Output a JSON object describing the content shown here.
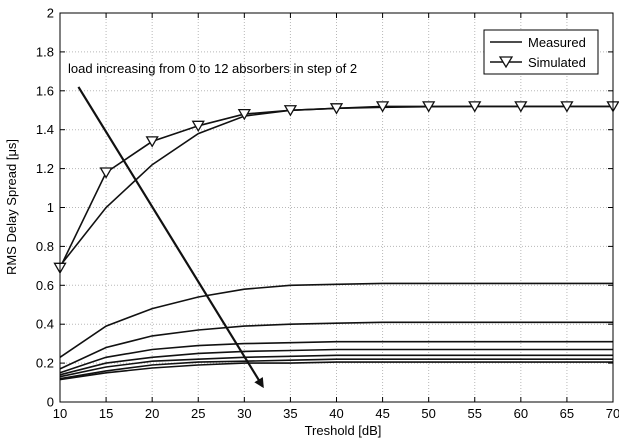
{
  "chart_data": {
    "type": "line",
    "title": "",
    "xlabel": "Treshold [dB]",
    "ylabel": "RMS Delay Spread [μs]",
    "xlim": [
      10,
      70
    ],
    "ylim": [
      0,
      2
    ],
    "xticks": [
      "10",
      "15",
      "20",
      "25",
      "30",
      "35",
      "40",
      "45",
      "50",
      "55",
      "60",
      "65",
      "70"
    ],
    "yticks": [
      "0",
      "0.2",
      "0.4",
      "0.6",
      "0.8",
      "1",
      "1.2",
      "1.4",
      "1.6",
      "1.8",
      "2"
    ],
    "grid": true,
    "legend_position": "top-right",
    "legend": [
      {
        "label": "Measured",
        "style": "line"
      },
      {
        "label": "Simulated",
        "style": "line-triangle"
      }
    ],
    "annotation": "load increasing from 0 to 12 absorbers in step of 2",
    "arrow": {
      "from": [
        12,
        1.62
      ],
      "to": [
        32,
        0.08
      ]
    },
    "x": [
      10,
      15,
      20,
      25,
      30,
      35,
      40,
      45,
      50,
      55,
      60,
      65,
      70
    ],
    "series": [
      {
        "kind": "measured",
        "values": [
          0.7,
          1.0,
          1.22,
          1.38,
          1.47,
          1.5,
          1.51,
          1.515,
          1.518,
          1.52,
          1.52,
          1.52,
          1.52
        ]
      },
      {
        "kind": "simulated",
        "values": [
          0.69,
          1.18,
          1.34,
          1.42,
          1.48,
          1.5,
          1.51,
          1.52,
          1.52,
          1.52,
          1.52,
          1.52,
          1.52
        ]
      },
      {
        "kind": "measured",
        "values": [
          0.23,
          0.39,
          0.48,
          0.54,
          0.58,
          0.6,
          0.605,
          0.61,
          0.61,
          0.61,
          0.61,
          0.61,
          0.61
        ]
      },
      {
        "kind": "measured",
        "values": [
          0.17,
          0.28,
          0.34,
          0.37,
          0.39,
          0.4,
          0.405,
          0.41,
          0.41,
          0.41,
          0.41,
          0.41,
          0.41
        ]
      },
      {
        "kind": "measured",
        "values": [
          0.15,
          0.23,
          0.27,
          0.29,
          0.3,
          0.305,
          0.31,
          0.31,
          0.31,
          0.31,
          0.31,
          0.31,
          0.31
        ]
      },
      {
        "kind": "measured",
        "values": [
          0.14,
          0.2,
          0.23,
          0.25,
          0.26,
          0.265,
          0.27,
          0.27,
          0.27,
          0.27,
          0.27,
          0.27,
          0.27
        ]
      },
      {
        "kind": "measured",
        "values": [
          0.13,
          0.18,
          0.21,
          0.22,
          0.23,
          0.235,
          0.24,
          0.24,
          0.24,
          0.24,
          0.24,
          0.24,
          0.24
        ]
      },
      {
        "kind": "measured",
        "values": [
          0.12,
          0.16,
          0.19,
          0.205,
          0.21,
          0.215,
          0.22,
          0.22,
          0.22,
          0.22,
          0.22,
          0.22,
          0.22
        ]
      },
      {
        "kind": "measured",
        "values": [
          0.115,
          0.15,
          0.175,
          0.19,
          0.2,
          0.2,
          0.205,
          0.205,
          0.205,
          0.205,
          0.205,
          0.205,
          0.205
        ]
      }
    ]
  }
}
